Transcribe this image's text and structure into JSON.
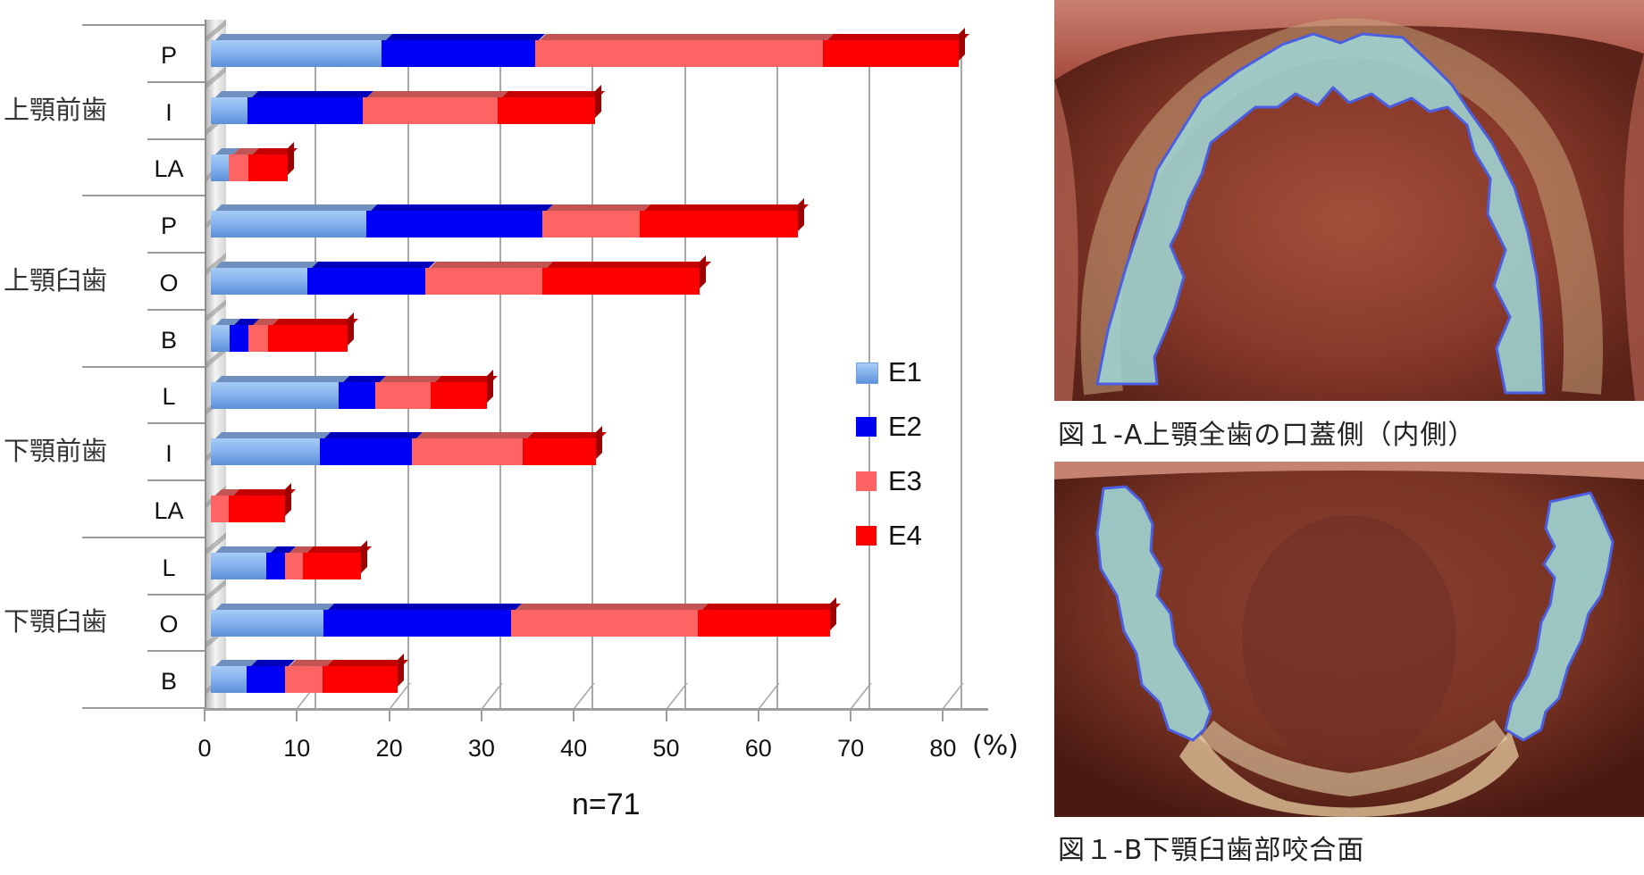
{
  "chart_data": {
    "type": "bar",
    "orientation": "horizontal",
    "stacked": true,
    "style": "3d",
    "title": "",
    "xlabel": "",
    "ylabel": "",
    "x_unit": "(%)",
    "xlim": [
      0,
      80
    ],
    "xticks": [
      0,
      10,
      20,
      30,
      40,
      50,
      60,
      70,
      80
    ],
    "grid": true,
    "legend_position": "right-inside",
    "annotation": "n=71",
    "groups": [
      {
        "label": "上顎前歯",
        "categories": [
          "P",
          "I",
          "LA"
        ]
      },
      {
        "label": "上顎臼歯",
        "categories": [
          "P",
          "O",
          "B"
        ]
      },
      {
        "label": "下顎前歯",
        "categories": [
          "L",
          "I",
          "LA"
        ]
      },
      {
        "label": "下顎臼歯",
        "categories": [
          "L",
          "O",
          "B"
        ]
      }
    ],
    "categories": [
      "上顎前歯 P",
      "上顎前歯 I",
      "上顎前歯 LA",
      "上顎臼歯 P",
      "上顎臼歯 O",
      "上顎臼歯 B",
      "下顎前歯 L",
      "下顎前歯 I",
      "下顎前歯 LA",
      "下顎臼歯 L",
      "下顎臼歯 O",
      "下顎臼歯 B"
    ],
    "series": [
      {
        "name": "E1",
        "color": "#7fb0ef",
        "values": [
          18.5,
          4.0,
          1.9,
          16.8,
          10.5,
          2.0,
          13.8,
          11.8,
          0.0,
          6.0,
          12.2,
          3.9
        ]
      },
      {
        "name": "E2",
        "color": "#0000f5",
        "values": [
          16.6,
          12.5,
          0.0,
          19.1,
          12.7,
          2.1,
          4.0,
          10.0,
          0.0,
          2.0,
          20.3,
          4.1
        ]
      },
      {
        "name": "E3",
        "color": "#ff6262",
        "values": [
          31.2,
          14.6,
          2.2,
          10.6,
          12.7,
          2.1,
          6.0,
          12.0,
          1.9,
          2.0,
          20.3,
          4.1
        ]
      },
      {
        "name": "E4",
        "color": "#ff0000",
        "values": [
          14.7,
          10.5,
          4.2,
          17.1,
          17.1,
          8.6,
          6.1,
          7.9,
          6.1,
          6.3,
          14.3,
          8.1
        ]
      }
    ]
  },
  "legend": {
    "items": [
      {
        "label": "E1",
        "color": "#7fb0ef"
      },
      {
        "label": "E2",
        "color": "#0000f5"
      },
      {
        "label": "E3",
        "color": "#ff6262"
      },
      {
        "label": "E4",
        "color": "#ff0000"
      }
    ]
  },
  "axis": {
    "ticks": [
      "0",
      "10",
      "20",
      "30",
      "40",
      "50",
      "60",
      "70",
      "80"
    ],
    "unit": "(%)"
  },
  "sample_size": "n=71",
  "figures": {
    "a": {
      "caption": "図１-A上顎全歯の口蓋側（内側）"
    },
    "b": {
      "caption": "図１-B下顎臼歯部咬合面"
    }
  }
}
